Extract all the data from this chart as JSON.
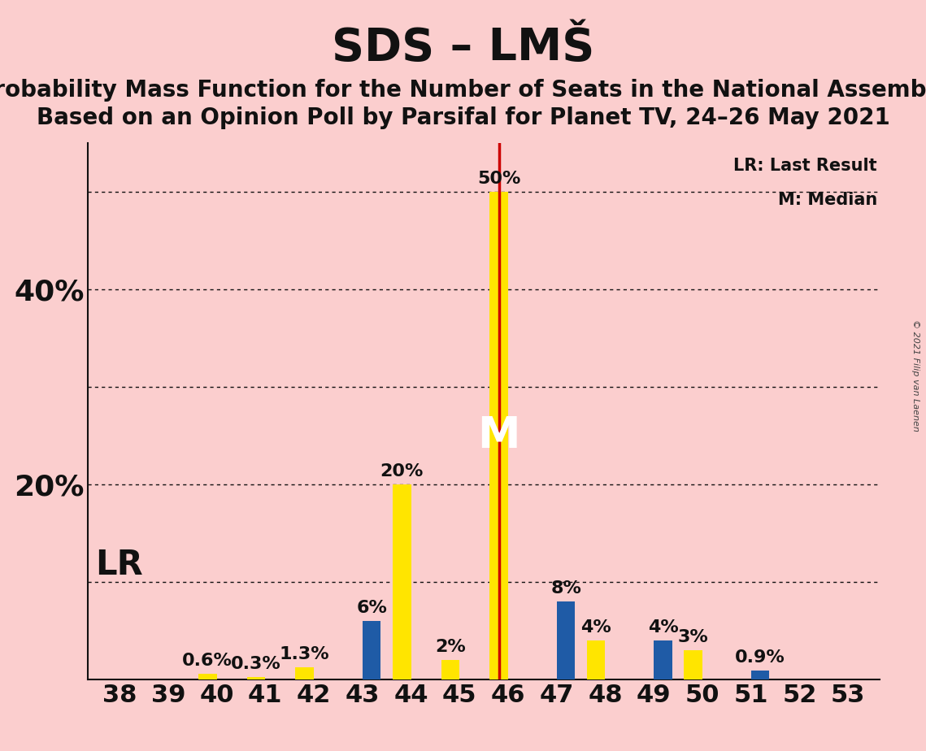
{
  "title": "SDS – LMŠ",
  "subtitle1": "Probability Mass Function for the Number of Seats in the National Assembly",
  "subtitle2": "Based on an Opinion Poll by Parsifal for Planet TV, 24–26 May 2021",
  "copyright": "© 2021 Filip van Laenen",
  "seats": [
    38,
    39,
    40,
    41,
    42,
    43,
    44,
    45,
    46,
    47,
    48,
    49,
    50,
    51,
    52,
    53
  ],
  "pmf_values": [
    0,
    0,
    0.6,
    0.3,
    1.3,
    0,
    20,
    2,
    50,
    0,
    4,
    0,
    3,
    0,
    0,
    0
  ],
  "lr_values": [
    0,
    0,
    0,
    0,
    0,
    6,
    0,
    0,
    0,
    8,
    0,
    4,
    0,
    0.9,
    0,
    0
  ],
  "pmf_color": "#FFE500",
  "lr_color": "#1F5BA6",
  "background_color": "#FBCECE",
  "vline_color": "#CC0000",
  "vline_seat_idx": 8,
  "ylabel_values": [
    0,
    10,
    20,
    30,
    40,
    50
  ],
  "ylim": [
    0,
    55
  ],
  "ytick_show": [
    20,
    40
  ],
  "grid_yvals": [
    10,
    20,
    30,
    40,
    50
  ],
  "grid_color": "#111111",
  "title_fontsize": 40,
  "subtitle_fontsize": 20,
  "bar_width": 0.38,
  "annotation_fontsize": 16,
  "median_label_fontsize": 38,
  "lr_label_fontsize": 30
}
